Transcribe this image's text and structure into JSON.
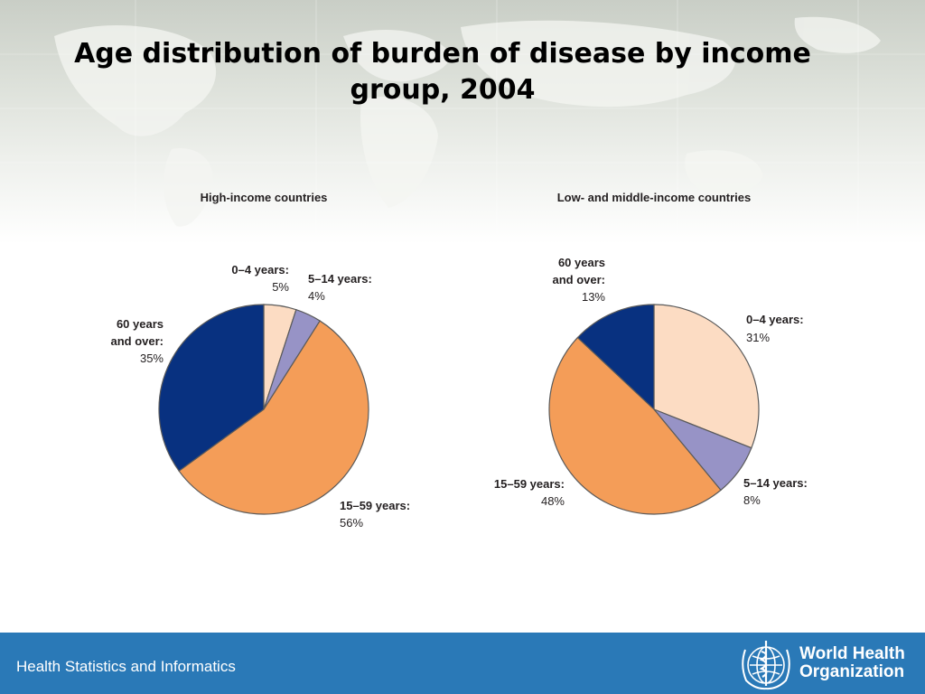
{
  "slide": {
    "title": "Age distribution of burden of disease by income group, 2004",
    "footer_text": "Health Statistics and Informatics",
    "organization_line1": "World Health",
    "organization_line2": "Organization",
    "logo_icon": "who-emblem-icon"
  },
  "colors": {
    "age_0_4": "#fcdcc3",
    "age_5_14": "#9793c6",
    "age_15_59": "#f49d58",
    "age_60_plus": "#083180",
    "footer": "#2a79b7"
  },
  "chart_data": [
    {
      "type": "pie",
      "title": "High-income countries",
      "slices": [
        {
          "label": "0–4 years:",
          "value": 5,
          "value_label": "5%",
          "color": "#fcdcc3"
        },
        {
          "label": "5–14 years:",
          "value": 4,
          "value_label": "4%",
          "color": "#9793c6"
        },
        {
          "label": "15–59 years:",
          "value": 56,
          "value_label": "56%",
          "color": "#f49d58"
        },
        {
          "label": "60 years and over:",
          "value": 35,
          "value_label": "35%",
          "color": "#083180"
        }
      ]
    },
    {
      "type": "pie",
      "title": "Low- and middle-income countries",
      "slices": [
        {
          "label": "0–4 years:",
          "value": 31,
          "value_label": "31%",
          "color": "#fcdcc3"
        },
        {
          "label": "5–14 years:",
          "value": 8,
          "value_label": "8%",
          "color": "#9793c6"
        },
        {
          "label": "15–59 years:",
          "value": 48,
          "value_label": "48%",
          "color": "#f49d58"
        },
        {
          "label": "60 years and over:",
          "value": 13,
          "value_label": "13%",
          "color": "#083180"
        }
      ]
    }
  ]
}
